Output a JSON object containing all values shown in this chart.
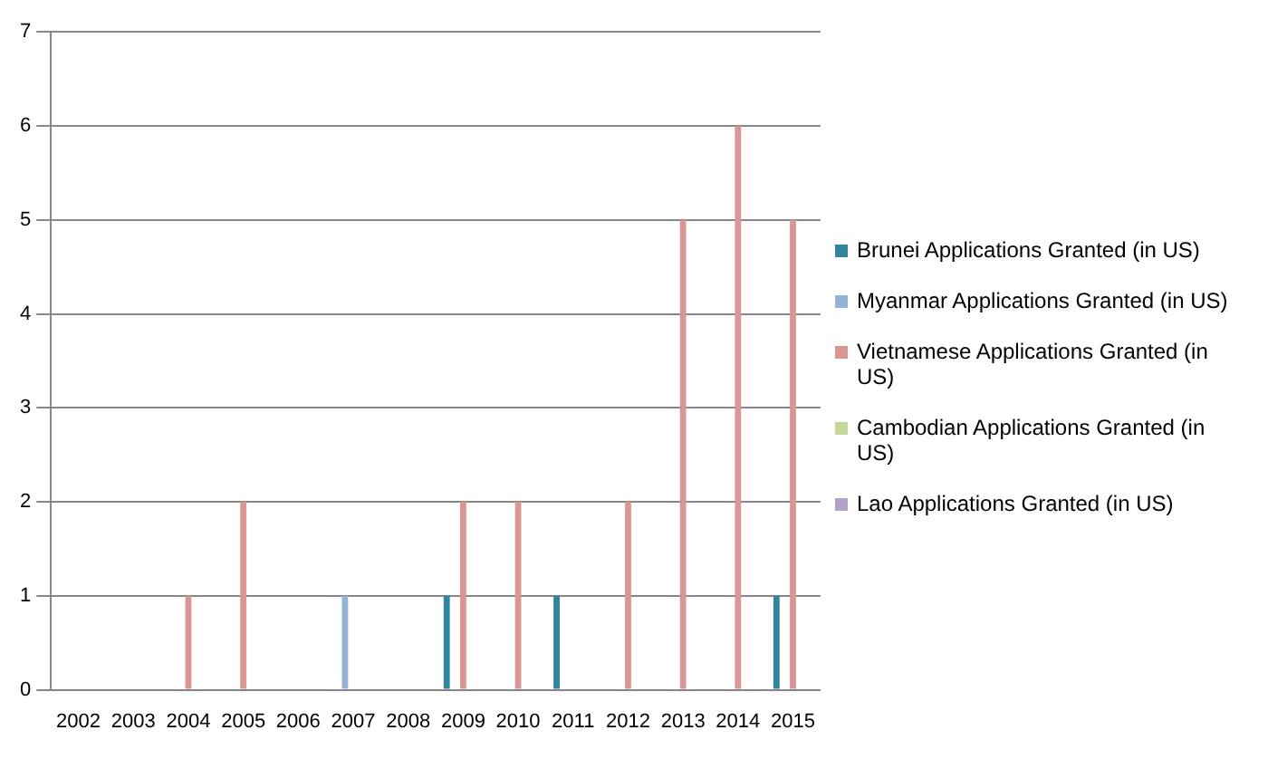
{
  "chart_data": {
    "type": "bar",
    "categories": [
      "2002",
      "2003",
      "2004",
      "2005",
      "2006",
      "2007",
      "2008",
      "2009",
      "2010",
      "2011",
      "2012",
      "2013",
      "2014",
      "2015"
    ],
    "series": [
      {
        "name": "Brunei Applications Granted (in US)",
        "color": "#31859c",
        "values": [
          0,
          0,
          0,
          0,
          0,
          0,
          0,
          1,
          0,
          1,
          0,
          0,
          0,
          1
        ]
      },
      {
        "name": "Myanmar Applications Granted (in US)",
        "color": "#95b3d7",
        "values": [
          0,
          0,
          0,
          0,
          0,
          1,
          0,
          0,
          0,
          0,
          0,
          0,
          0,
          0
        ]
      },
      {
        "name": "Vietnamese Applications Granted (in US)",
        "color": "#d99694",
        "values": [
          0,
          0,
          1,
          2,
          0,
          0,
          0,
          2,
          2,
          0,
          2,
          5,
          6,
          5
        ]
      },
      {
        "name": "Cambodian Applications Granted (in US)",
        "color": "#c3d69b",
        "values": [
          0,
          0,
          0,
          0,
          0,
          0,
          0,
          0,
          0,
          0,
          0,
          0,
          0,
          0
        ]
      },
      {
        "name": "Lao Applications Granted (in US)",
        "color": "#b3a2c7",
        "values": [
          0,
          0,
          0,
          0,
          0,
          0,
          0,
          0,
          0,
          0,
          0,
          0,
          0,
          0
        ]
      }
    ],
    "ylim": [
      0,
      7
    ],
    "yticks": [
      0,
      1,
      2,
      3,
      4,
      5,
      6,
      7
    ],
    "grid": "y",
    "legend": "right"
  }
}
